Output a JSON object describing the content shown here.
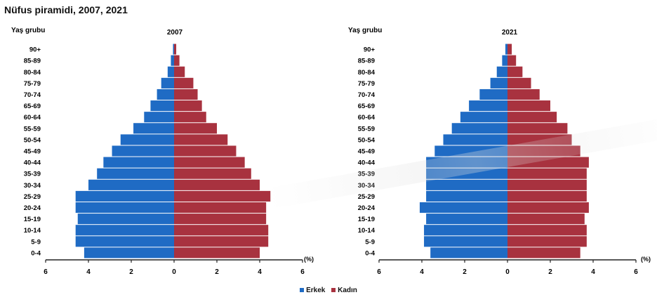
{
  "title": "Nüfus piramidi, 2007, 2021",
  "legend": {
    "male_label": "Erkek",
    "female_label": "Kadın"
  },
  "colors": {
    "male": "#1f6bc4",
    "female": "#a8323f"
  },
  "chart_data": [
    {
      "type": "bar",
      "title": "2007",
      "ylabel": "Yaş grubu",
      "xlabel": "(%)",
      "xlim": [
        -6,
        6
      ],
      "xticks": [
        6,
        4,
        2,
        0,
        2,
        4,
        6
      ],
      "categories": [
        "0-4",
        "5-9",
        "10-14",
        "15-19",
        "20-24",
        "25-29",
        "30-34",
        "35-39",
        "40-44",
        "45-49",
        "50-54",
        "55-59",
        "60-64",
        "65-69",
        "70-74",
        "75-79",
        "80-84",
        "85-89",
        "90+"
      ],
      "series": [
        {
          "name": "Erkek",
          "values": [
            4.2,
            4.6,
            4.6,
            4.5,
            4.6,
            4.6,
            4.0,
            3.6,
            3.3,
            2.9,
            2.5,
            1.9,
            1.4,
            1.1,
            0.8,
            0.6,
            0.3,
            0.15,
            0.05
          ]
        },
        {
          "name": "Kadın",
          "values": [
            4.0,
            4.4,
            4.4,
            4.3,
            4.3,
            4.5,
            4.0,
            3.6,
            3.3,
            2.9,
            2.5,
            2.0,
            1.5,
            1.3,
            1.1,
            0.9,
            0.5,
            0.25,
            0.1
          ]
        }
      ]
    },
    {
      "type": "bar",
      "title": "2021",
      "ylabel": "Yaş grubu",
      "xlabel": "(%)",
      "xlim": [
        -6,
        6
      ],
      "xticks": [
        6,
        4,
        2,
        0,
        2,
        4,
        6
      ],
      "categories": [
        "0-4",
        "5-9",
        "10-14",
        "15-19",
        "20-24",
        "25-29",
        "30-34",
        "35-39",
        "40-44",
        "45-49",
        "50-54",
        "55-59",
        "60-64",
        "65-69",
        "70-74",
        "75-79",
        "80-84",
        "85-89",
        "90+"
      ],
      "series": [
        {
          "name": "Erkek",
          "values": [
            3.6,
            3.9,
            3.9,
            3.8,
            4.1,
            3.8,
            3.8,
            3.8,
            3.8,
            3.4,
            3.0,
            2.6,
            2.2,
            1.8,
            1.3,
            0.8,
            0.5,
            0.25,
            0.1
          ]
        },
        {
          "name": "Kadın",
          "values": [
            3.4,
            3.7,
            3.7,
            3.6,
            3.8,
            3.7,
            3.7,
            3.7,
            3.8,
            3.4,
            3.0,
            2.8,
            2.3,
            2.0,
            1.5,
            1.1,
            0.7,
            0.4,
            0.2
          ]
        }
      ]
    }
  ]
}
